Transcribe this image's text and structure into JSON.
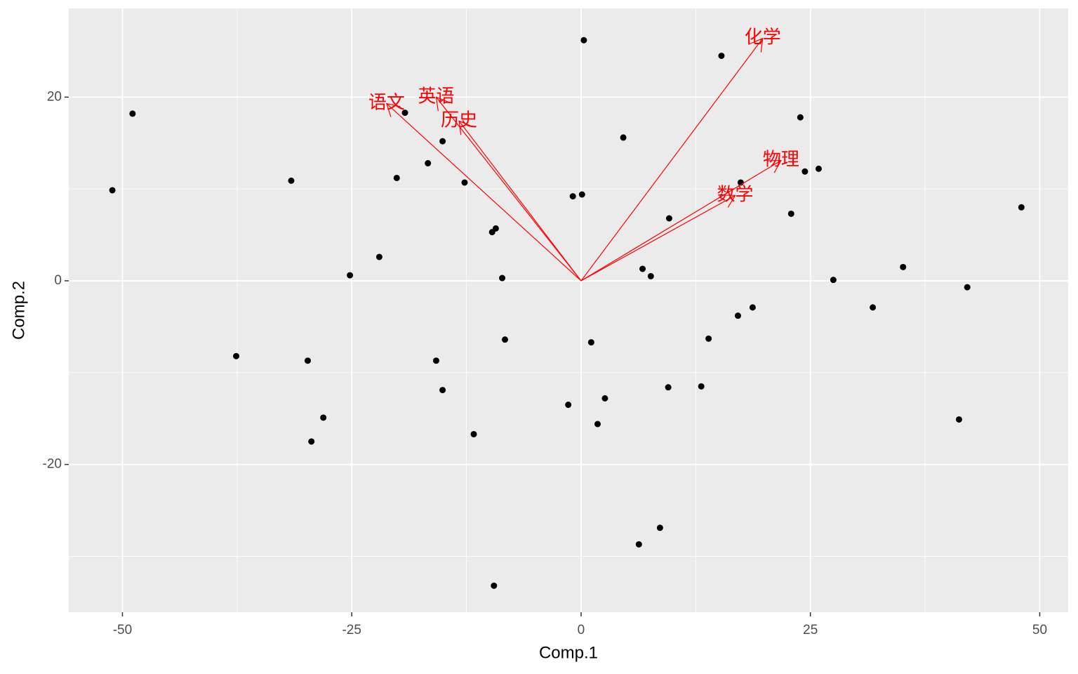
{
  "chart_data": {
    "type": "biplot",
    "x_label": "Comp.1",
    "y_label": "Comp.2",
    "xlim": [
      -55.85,
      53.1
    ],
    "ylim": [
      -36.09,
      29.66
    ],
    "xticks": [
      -50,
      -25,
      0,
      25,
      50
    ],
    "yticks": [
      -20,
      0,
      20
    ],
    "grid": true,
    "point_color": "#000000",
    "arrow_color": "#FF0000",
    "x": [
      -51.1,
      -48.9,
      -31.6,
      -37.6,
      -29.8,
      -29.4,
      -28.1,
      -25.2,
      -22.0,
      -20.1,
      -19.2,
      -16.7,
      -15.8,
      -15.1,
      -15.1,
      -12.7,
      -11.7,
      -9.7,
      -9.3,
      -8.6,
      -8.3,
      -9.5,
      -0.9,
      0.1,
      0.3,
      -1.4,
      1.1,
      1.8,
      2.6,
      4.6,
      6.7,
      7.6,
      9.6,
      9.5,
      6.3,
      8.6,
      13.1,
      13.9,
      15.3,
      17.1,
      17.4,
      18.7,
      22.9,
      23.9,
      24.4,
      25.9,
      27.5,
      31.8,
      35.1,
      41.2,
      42.1,
      48.0
    ],
    "y": [
      9.86,
      18.2,
      10.9,
      -8.2,
      -8.7,
      -17.5,
      -14.9,
      0.6,
      2.6,
      11.2,
      18.3,
      12.8,
      -8.7,
      15.2,
      -11.9,
      10.7,
      -16.7,
      5.3,
      5.7,
      0.3,
      -6.4,
      -33.2,
      9.2,
      9.4,
      26.2,
      -13.5,
      -6.7,
      -15.6,
      -12.8,
      15.6,
      1.3,
      0.5,
      6.8,
      -11.6,
      -28.7,
      -26.9,
      -11.5,
      -6.3,
      24.5,
      -3.8,
      10.7,
      -2.9,
      7.3,
      17.8,
      11.9,
      12.2,
      0.1,
      -2.9,
      1.5,
      -15.1,
      -0.7,
      8.0
    ],
    "arrows": [
      {
        "name": "语文",
        "x": -21.2,
        "y": 19.3
      },
      {
        "name": "英语",
        "x": -15.8,
        "y": 20.0
      },
      {
        "name": "历史",
        "x": -13.3,
        "y": 17.4
      },
      {
        "name": "化学",
        "x": 19.8,
        "y": 26.4
      },
      {
        "name": "物理",
        "x": 21.8,
        "y": 13.1
      },
      {
        "name": "数学",
        "x": 16.8,
        "y": 9.3
      }
    ]
  }
}
